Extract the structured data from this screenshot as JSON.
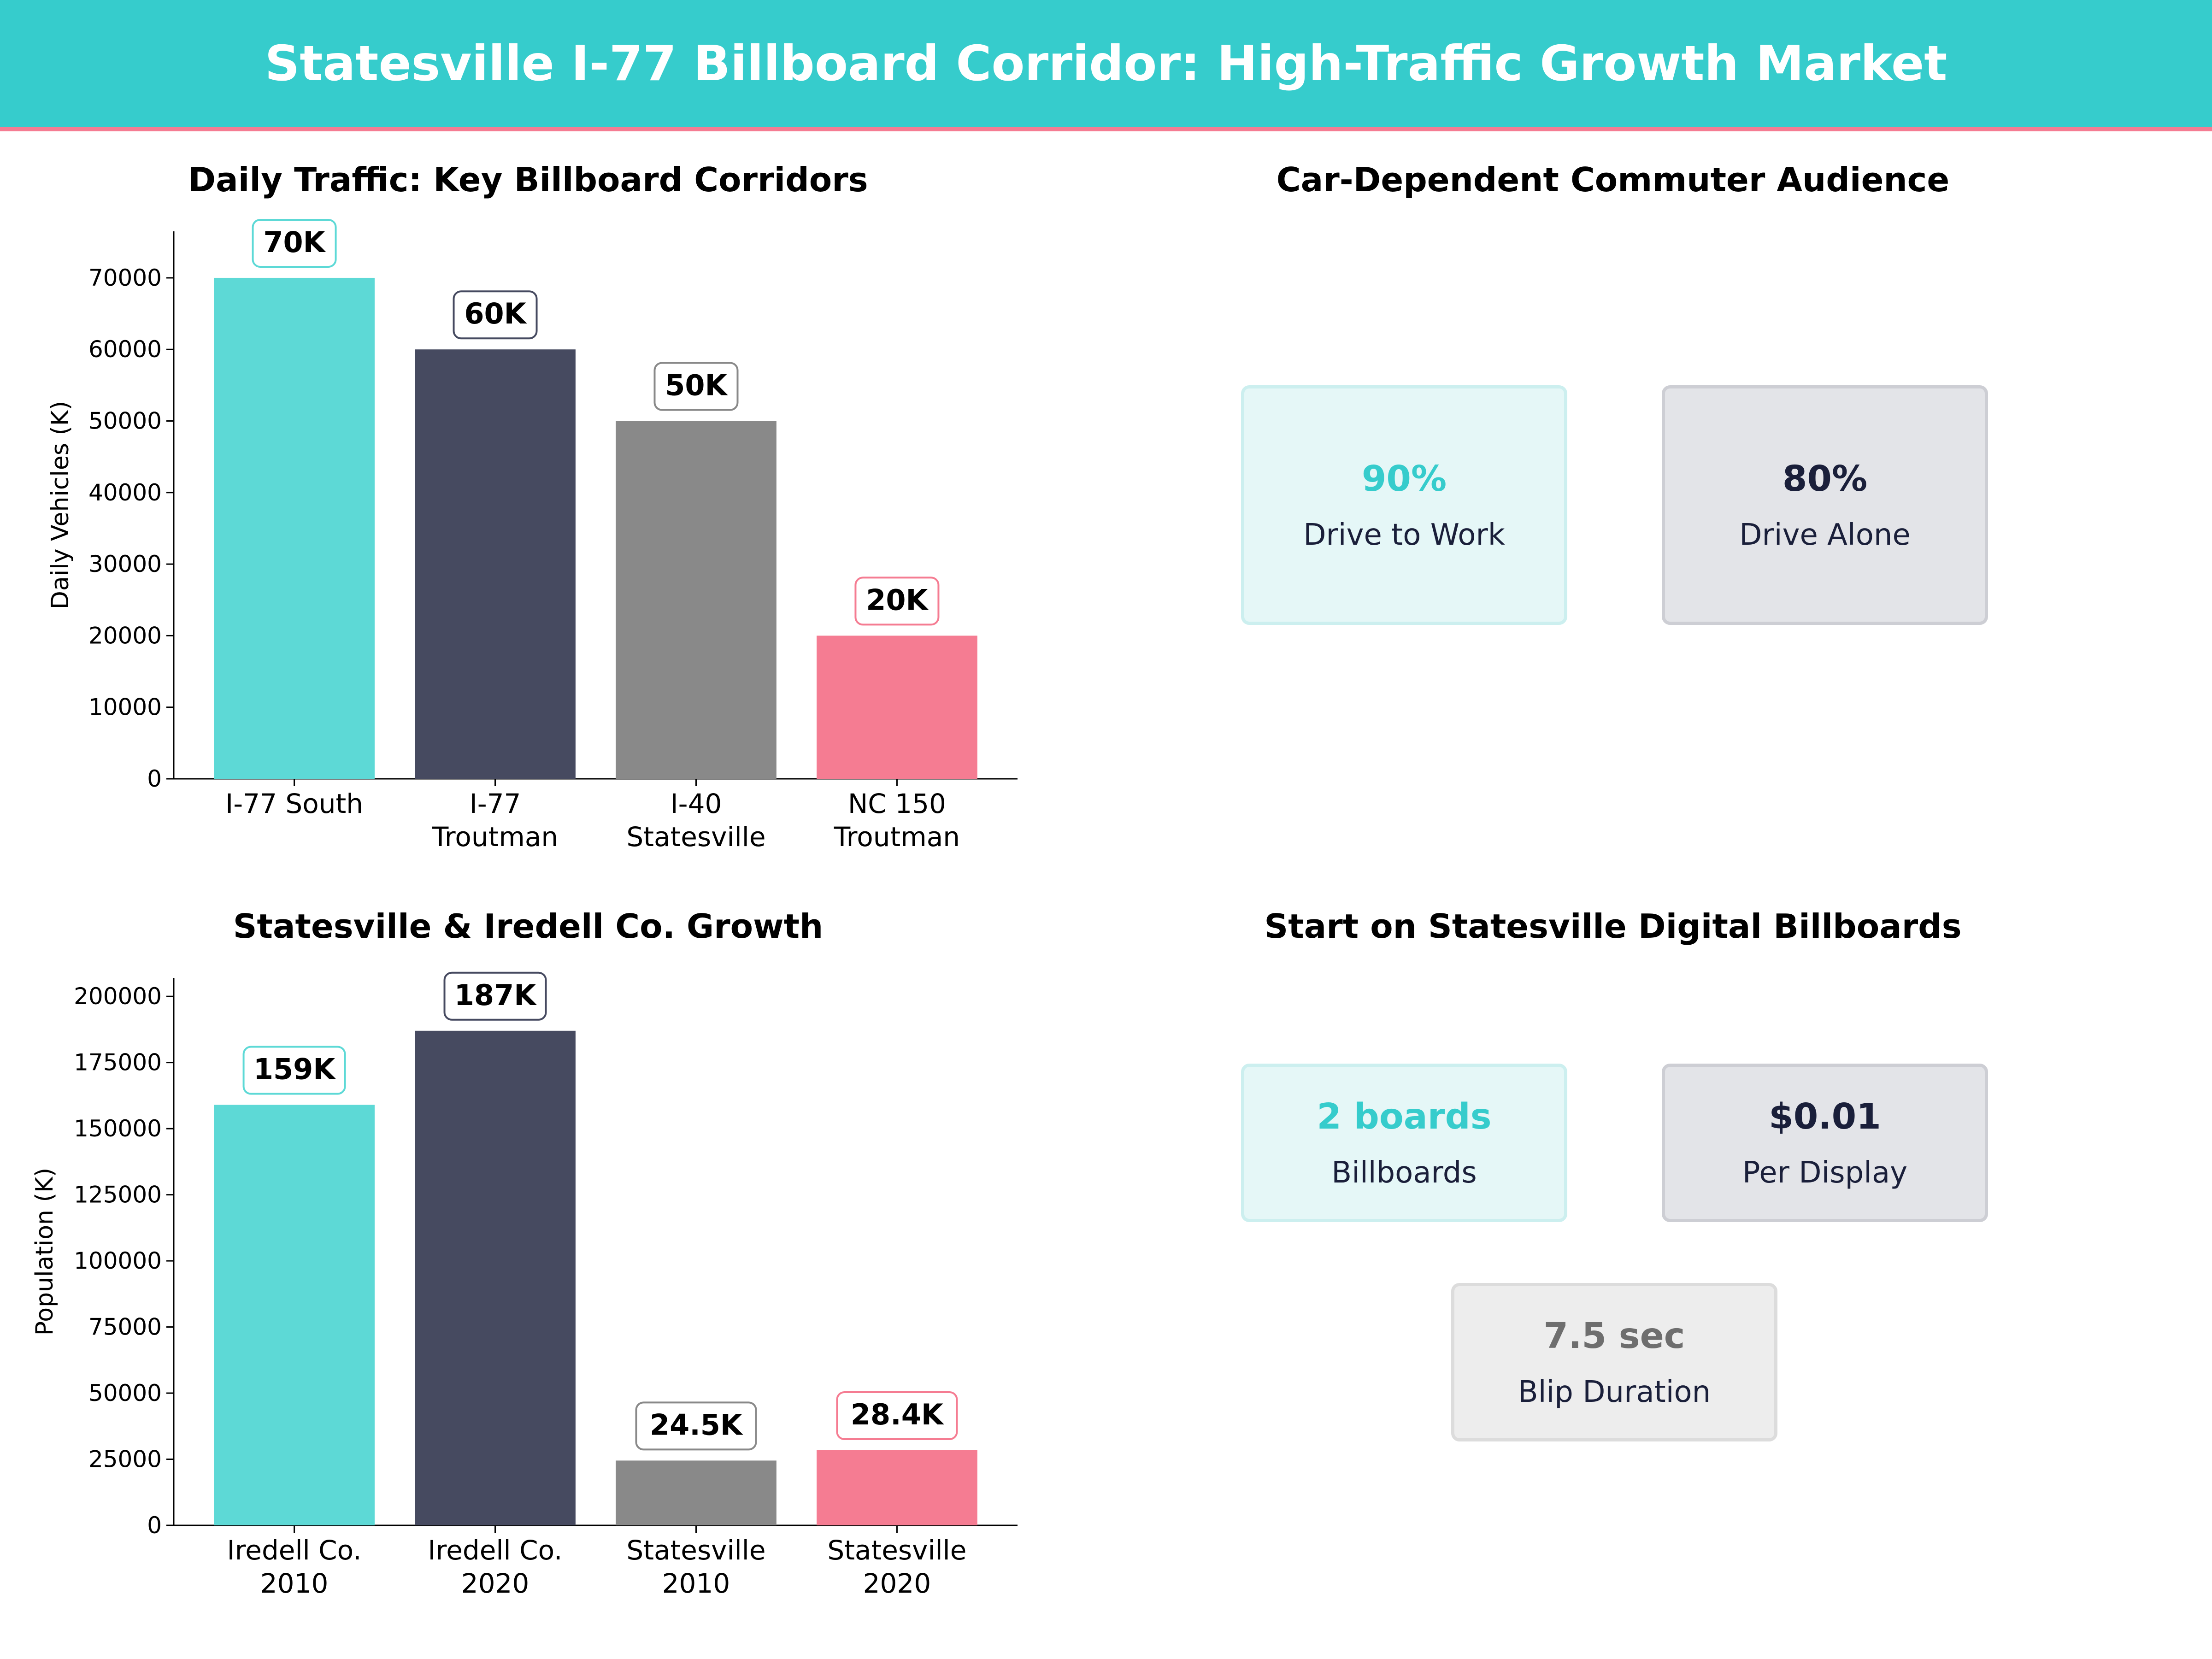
{
  "title": "Statesville I-77 Billboard Corridor: High-Traffic Growth Market",
  "colors": {
    "teal": "#5dd9d6",
    "navy": "#464a60",
    "gray": "#898989",
    "pink": "#f57c92",
    "banner": "#36cccc"
  },
  "chart_data": [
    {
      "type": "bar",
      "title": "Daily Traffic: Key Billboard Corridors",
      "xlabel": "",
      "ylabel": "Daily Vehicles (K)",
      "categories": [
        "I-77 South",
        "I-77 Troutman",
        "I-40 Statesville",
        "NC 150 Troutman"
      ],
      "category_lines": [
        [
          "I-77 South"
        ],
        [
          "I-77",
          "Troutman"
        ],
        [
          "I-40",
          "Statesville"
        ],
        [
          "NC 150",
          "Troutman"
        ]
      ],
      "values": [
        70000,
        60000,
        50000,
        20000
      ],
      "data_labels": [
        "70K",
        "60K",
        "50K",
        "20K"
      ],
      "ylim": [
        0,
        76500
      ],
      "yticks": [
        0,
        10000,
        20000,
        30000,
        40000,
        50000,
        60000,
        70000
      ],
      "grid": false,
      "bar_colors": [
        "#5dd9d6",
        "#464a60",
        "#898989",
        "#f57c92"
      ]
    },
    {
      "type": "bar",
      "title": "Statesville & Iredell Co. Growth",
      "xlabel": "",
      "ylabel": "Population (K)",
      "categories": [
        "Iredell Co. 2010",
        "Iredell Co. 2020",
        "Statesville 2010",
        "Statesville 2020"
      ],
      "category_lines": [
        [
          "Iredell Co.",
          "2010"
        ],
        [
          "Iredell Co.",
          "2020"
        ],
        [
          "Statesville",
          "2010"
        ],
        [
          "Statesville",
          "2020"
        ]
      ],
      "values": [
        159000,
        187000,
        24500,
        28400
      ],
      "data_labels": [
        "159K",
        "187K",
        "24.5K",
        "28.4K"
      ],
      "ylim": [
        0,
        207000
      ],
      "yticks": [
        0,
        25000,
        50000,
        75000,
        100000,
        125000,
        150000,
        175000,
        200000
      ],
      "grid": false,
      "bar_colors": [
        "#5dd9d6",
        "#464a60",
        "#898989",
        "#f57c92"
      ]
    }
  ],
  "commuter": {
    "title": "Car-Dependent Commuter Audience",
    "cards": [
      {
        "value": "90%",
        "label": "Drive to Work",
        "color": "#36cccc"
      },
      {
        "value": "80%",
        "label": "Drive Alone",
        "color": "#1a1f3a"
      }
    ]
  },
  "billboards": {
    "title": "Start on Statesville Digital Billboards",
    "cards": [
      {
        "value": "2 boards",
        "label": "Billboards",
        "color": "#36cccc"
      },
      {
        "value": "$0.01",
        "label": "Per Display",
        "color": "#1a1f3a"
      },
      {
        "value": "7.5 sec",
        "label": "Blip Duration",
        "color": "#6e6e6e"
      }
    ]
  }
}
